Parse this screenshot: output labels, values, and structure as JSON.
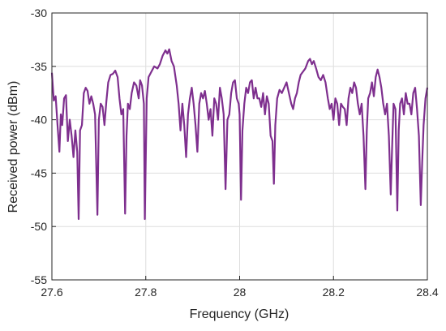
{
  "chart_data": {
    "type": "line",
    "xlabel": "Frequency (GHz)",
    "ylabel": "Received power (dBm)",
    "xlim": [
      27.6,
      28.4
    ],
    "xticks": [
      27.6,
      27.8,
      28,
      28.2,
      28.4
    ],
    "ylim": [
      -55,
      -30
    ],
    "yticks": [
      -55,
      -50,
      -45,
      -40,
      -35,
      -30
    ],
    "grid": true,
    "series": [
      {
        "color": "#7e2f8e",
        "x": [
          27.6,
          27.604,
          27.608,
          27.612,
          27.616,
          27.619,
          27.622,
          27.626,
          27.63,
          27.634,
          27.638,
          27.642,
          27.646,
          27.65,
          27.654,
          27.657,
          27.66,
          27.664,
          27.668,
          27.672,
          27.676,
          27.68,
          27.684,
          27.688,
          27.692,
          27.697,
          27.7,
          27.704,
          27.708,
          27.712,
          27.716,
          27.72,
          27.725,
          27.73,
          27.735,
          27.74,
          27.744,
          27.748,
          27.752,
          27.756,
          27.759,
          27.762,
          27.766,
          27.77,
          27.775,
          27.78,
          27.785,
          27.788,
          27.792,
          27.796,
          27.798,
          27.802,
          27.806,
          27.812,
          27.818,
          27.825,
          27.83,
          27.836,
          27.842,
          27.846,
          27.85,
          27.855,
          27.86,
          27.866,
          27.87,
          27.874,
          27.878,
          27.882,
          27.886,
          27.89,
          27.894,
          27.898,
          27.902,
          27.906,
          27.91,
          27.914,
          27.918,
          27.922,
          27.926,
          27.93,
          27.934,
          27.938,
          27.942,
          27.946,
          27.95,
          27.954,
          27.958,
          27.962,
          27.966,
          27.97,
          27.974,
          27.978,
          27.982,
          27.986,
          27.99,
          27.994,
          27.998,
          28.0,
          28.003,
          28.006,
          28.01,
          28.014,
          28.018,
          28.022,
          28.026,
          28.03,
          28.034,
          28.038,
          28.042,
          28.046,
          28.05,
          28.054,
          28.058,
          28.062,
          28.066,
          28.07,
          28.073,
          28.076,
          28.08,
          28.085,
          28.09,
          28.095,
          28.1,
          28.105,
          28.11,
          28.114,
          28.118,
          28.122,
          28.126,
          28.13,
          28.135,
          28.14,
          28.146,
          28.15,
          28.154,
          28.158,
          28.163,
          28.168,
          28.173,
          28.178,
          28.183,
          28.188,
          28.192,
          28.196,
          28.2,
          28.204,
          28.208,
          28.212,
          28.216,
          28.22,
          28.224,
          28.228,
          28.232,
          28.236,
          28.24,
          28.244,
          28.248,
          28.252,
          28.256,
          28.26,
          28.264,
          28.268,
          28.271,
          28.274,
          28.278,
          28.282,
          28.286,
          28.29,
          28.294,
          28.298,
          28.302,
          28.306,
          28.31,
          28.314,
          28.318,
          28.322,
          28.325,
          28.328,
          28.332,
          28.336,
          28.339,
          28.342,
          28.346,
          28.35,
          28.354,
          28.358,
          28.362,
          28.366,
          28.37,
          28.374,
          28.378,
          28.382,
          28.386,
          28.389,
          28.392,
          28.396,
          28.4
        ],
        "values": [
          -35.6,
          -38.2,
          -37.8,
          -40.5,
          -43.0,
          -39.5,
          -40.5,
          -38.0,
          -37.7,
          -42.0,
          -40.0,
          -41.5,
          -43.5,
          -41.0,
          -43.0,
          -49.3,
          -41.0,
          -40.5,
          -37.5,
          -37.0,
          -37.3,
          -38.5,
          -37.8,
          -38.5,
          -39.5,
          -48.9,
          -40.0,
          -38.5,
          -38.8,
          -40.5,
          -38.3,
          -36.5,
          -35.8,
          -35.7,
          -35.4,
          -36.0,
          -38.0,
          -39.5,
          -39.0,
          -48.8,
          -41.5,
          -38.5,
          -39.0,
          -37.5,
          -36.5,
          -36.8,
          -38.0,
          -36.3,
          -36.8,
          -38.5,
          -49.3,
          -38.0,
          -36.0,
          -35.5,
          -35.0,
          -35.2,
          -34.8,
          -34.0,
          -33.5,
          -33.8,
          -33.4,
          -34.5,
          -35.0,
          -36.8,
          -38.5,
          -41.0,
          -38.5,
          -40.5,
          -43.5,
          -39.5,
          -38.0,
          -37.0,
          -38.5,
          -40.5,
          -43.0,
          -38.5,
          -37.5,
          -38.0,
          -37.3,
          -38.5,
          -40.0,
          -39.0,
          -41.5,
          -38.0,
          -38.5,
          -40.0,
          -37.0,
          -38.0,
          -39.5,
          -46.5,
          -40.0,
          -39.5,
          -37.5,
          -36.5,
          -36.3,
          -38.0,
          -38.5,
          -39.5,
          -47.5,
          -41.0,
          -38.5,
          -37.0,
          -37.5,
          -36.5,
          -36.3,
          -38.0,
          -37.0,
          -38.0,
          -38.0,
          -38.8,
          -37.5,
          -39.5,
          -37.8,
          -38.5,
          -41.5,
          -42.0,
          -46.0,
          -40.5,
          -38.0,
          -37.2,
          -37.5,
          -37.0,
          -36.5,
          -37.5,
          -38.5,
          -39.0,
          -38.0,
          -37.5,
          -36.5,
          -35.8,
          -35.5,
          -35.2,
          -34.5,
          -34.3,
          -34.8,
          -34.5,
          -35.2,
          -36.0,
          -36.3,
          -35.8,
          -36.5,
          -38.0,
          -39.0,
          -38.5,
          -40.0,
          -38.0,
          -38.5,
          -40.5,
          -38.5,
          -38.8,
          -39.0,
          -40.5,
          -38.0,
          -37.0,
          -37.5,
          -36.5,
          -37.0,
          -38.5,
          -39.5,
          -38.5,
          -41.5,
          -46.5,
          -41.0,
          -38.0,
          -37.5,
          -36.5,
          -37.8,
          -36.0,
          -35.3,
          -36.0,
          -37.0,
          -38.5,
          -39.5,
          -38.5,
          -41.5,
          -47.0,
          -42.5,
          -38.5,
          -39.0,
          -48.5,
          -41.0,
          -38.5,
          -38.0,
          -39.5,
          -37.5,
          -38.5,
          -38.5,
          -39.5,
          -37.5,
          -37.0,
          -39.0,
          -41.5,
          -48.0,
          -44.0,
          -40.5,
          -38.0,
          -37.0
        ]
      }
    ]
  }
}
